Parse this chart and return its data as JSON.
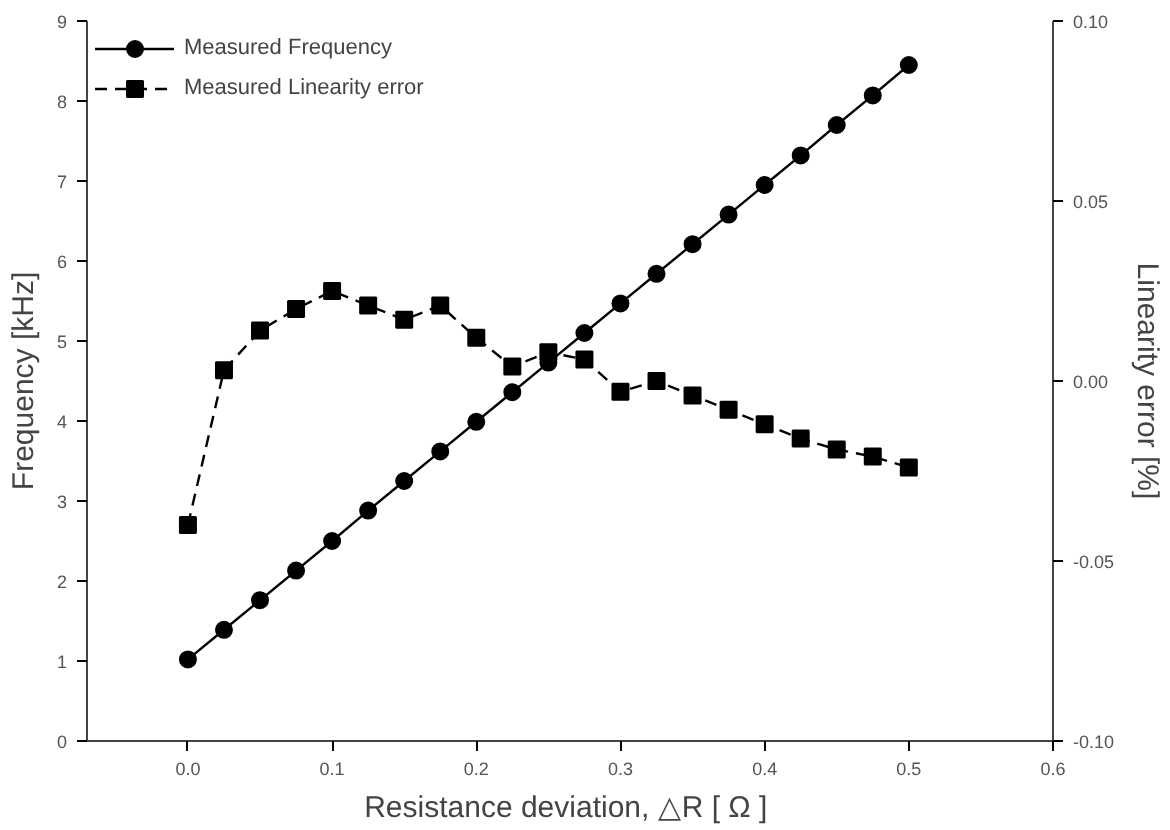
{
  "chart_data": {
    "type": "line",
    "xlabel": "Resistance deviation, △R  [ Ω ]",
    "ylabel": "Frequency [kHz]",
    "y2label": "Linearity error [%]",
    "x": [
      0,
      0.025,
      0.05,
      0.075,
      0.1,
      0.125,
      0.15,
      0.175,
      0.2,
      0.225,
      0.25,
      0.275,
      0.3,
      0.325,
      0.35,
      0.375,
      0.4,
      0.425,
      0.45,
      0.475,
      0.5
    ],
    "series": [
      {
        "name": "Measured Frequency",
        "color": "#000000",
        "marker": "circle",
        "line_style": "solid",
        "values": [
          1.02,
          1.39,
          1.76,
          2.13,
          2.5,
          2.88,
          3.25,
          3.62,
          3.99,
          4.36,
          4.73,
          5.1,
          5.47,
          5.84,
          6.21,
          6.58,
          6.95,
          7.32,
          7.7,
          8.07,
          8.45
        ]
      },
      {
        "name": "Measured Linearity error",
        "color": "#000000",
        "marker": "square",
        "line_style": "dashed",
        "axis": "y2",
        "values": [
          -0.04,
          0.003,
          0.014,
          0.02,
          0.025,
          0.021,
          0.017,
          0.021,
          0.012,
          0.004,
          0.008,
          0.006,
          -0.003,
          0.0,
          -0.004,
          -0.008,
          -0.012,
          -0.016,
          -0.019,
          -0.021,
          -0.024
        ]
      }
    ],
    "xlim": [
      -0.07,
      0.6
    ],
    "xticks": [
      {
        "value": 0,
        "label": "0.0"
      },
      0.1,
      0.2,
      0.3,
      0.4,
      0.5,
      0.6
    ],
    "ylim": [
      0,
      9
    ],
    "yticks": [
      0,
      1,
      2,
      3,
      4,
      5,
      6,
      7,
      8,
      9
    ],
    "y2lim": [
      -0.1,
      0.1
    ],
    "y2ticks": [
      {
        "value": -0.1,
        "label": "-0.10"
      },
      -0.05,
      {
        "value": 0,
        "label": "0.00"
      },
      0.05,
      {
        "value": 0.1,
        "label": "0.10"
      }
    ],
    "legend": "top left",
    "grid": false
  }
}
